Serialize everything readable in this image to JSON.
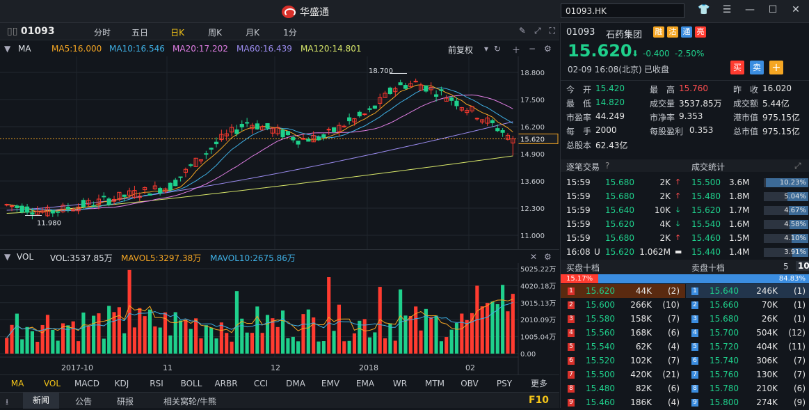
{
  "app": {
    "title": "华盛通",
    "search_value": "01093.HK"
  },
  "toolbar": {
    "code": "01093",
    "periods": [
      "分时",
      "五日",
      "日K",
      "周K",
      "月K",
      "1分"
    ],
    "active": "日K"
  },
  "indicators": {
    "ma": "MA",
    "ma5": "MA5:16.000",
    "ma10": "MA10:16.546",
    "ma20": "MA20:17.202",
    "ma60": "MA60:16.439",
    "ma120": "MA120:14.801",
    "adjust": "前复权"
  },
  "price_axis": [
    "18.800",
    "17.500",
    "16.200",
    "15.620",
    "14.900",
    "13.600",
    "12.300",
    "11.000"
  ],
  "annotations": {
    "high": "18.700",
    "low": "11.980"
  },
  "vol": {
    "label": "VOL",
    "vol": "VOL:3537.85万",
    "mavol5": "MAVOL5:3297.38万",
    "mavol10": "MAVOL10:2675.86万",
    "axis": [
      "5025.22万",
      "4020.18万",
      "3015.13万",
      "2010.09万",
      "1005.04万",
      "0.00"
    ]
  },
  "x_axis": [
    "2017-10",
    "11",
    "12",
    "2018",
    "02"
  ],
  "indicator_tabs": [
    "MA",
    "VOL",
    "MACD",
    "KDJ",
    "RSI",
    "BOLL",
    "ARBR",
    "CCI",
    "DMA",
    "EMV",
    "EMA",
    "WR",
    "MTM",
    "OBV",
    "PSY",
    "更多"
  ],
  "bottom_tabs": {
    "news": "新闻",
    "announce": "公告",
    "research": "研报",
    "related": "相关窝轮/牛熊",
    "f10": "F10"
  },
  "quote": {
    "code": "01093",
    "name": "石药集团",
    "tags": [
      "融",
      "沽",
      "通",
      "亮"
    ],
    "price": "15.620",
    "change": "-0.400",
    "pct": "-2.50%",
    "datetime": "02-09  16:08(北京)",
    "status": "已收盘",
    "buy": "买",
    "sell": "卖",
    "plus": "+"
  },
  "stats": [
    [
      [
        "今　开",
        "15.420",
        "g"
      ],
      [
        "最　高",
        "15.760",
        "r"
      ],
      [
        "昨　收",
        "16.020",
        "w"
      ]
    ],
    [
      [
        "最　低",
        "14.820",
        "g"
      ],
      [
        "成交量",
        "3537.85万",
        "w"
      ],
      [
        "成交额",
        "5.44亿",
        "w"
      ]
    ],
    [
      [
        "市盈率",
        "44.249",
        "w"
      ],
      [
        "市净率",
        "9.353",
        "w"
      ],
      [
        "港市值",
        "975.15亿",
        "w"
      ]
    ],
    [
      [
        "每　手",
        "2000",
        "w"
      ],
      [
        "每股盈利",
        "0.353",
        "w"
      ],
      [
        "总市值",
        "975.15亿",
        "w"
      ]
    ],
    [
      [
        "总股本",
        "62.43亿",
        "w"
      ]
    ]
  ],
  "ticks_header": {
    "left": "逐笔交易",
    "right": "成交统计"
  },
  "ticks": [
    {
      "t": "15:59",
      "p": "15.680",
      "v": "2K",
      "dir": "up",
      "sp": "15.500",
      "sv": "3.6M",
      "pct": "10.23%",
      "pv": 0.95
    },
    {
      "t": "15:59",
      "p": "15.680",
      "v": "2K",
      "dir": "up",
      "sp": "15.480",
      "sv": "1.8M",
      "pct": "5.04%",
      "pv": 0.47
    },
    {
      "t": "15:59",
      "p": "15.640",
      "v": "10K",
      "dir": "down",
      "sp": "15.620",
      "sv": "1.7M",
      "pct": "4.67%",
      "pv": 0.43
    },
    {
      "t": "15:59",
      "p": "15.620",
      "v": "4K",
      "dir": "down",
      "sp": "15.540",
      "sv": "1.6M",
      "pct": "4.58%",
      "pv": 0.42
    },
    {
      "t": "15:59",
      "p": "15.680",
      "v": "2K",
      "dir": "up",
      "sp": "15.460",
      "sv": "1.5M",
      "pct": "4.10%",
      "pv": 0.38
    },
    {
      "t": "16:08",
      "u": "U",
      "p": "15.620",
      "v": "1.062M",
      "dir": "flat",
      "sp": "15.440",
      "sv": "1.4M",
      "pct": "3.91%",
      "pv": 0.36
    }
  ],
  "orderbook": {
    "buy_title": "买盘十档",
    "sell_title": "卖盘十档",
    "opt5": "5",
    "opt10": "10",
    "buy_pct": "15.17%",
    "sell_pct": "84.83%",
    "buy_frac": 0.1517,
    "bids": [
      [
        "1",
        "15.620",
        "44K",
        "(2)"
      ],
      [
        "2",
        "15.600",
        "266K",
        "(10)"
      ],
      [
        "3",
        "15.580",
        "158K",
        "(7)"
      ],
      [
        "4",
        "15.560",
        "168K",
        "(6)"
      ],
      [
        "5",
        "15.540",
        "62K",
        "(4)"
      ],
      [
        "6",
        "15.520",
        "102K",
        "(7)"
      ],
      [
        "7",
        "15.500",
        "420K",
        "(21)"
      ],
      [
        "8",
        "15.480",
        "82K",
        "(6)"
      ],
      [
        "9",
        "15.460",
        "186K",
        "(4)"
      ]
    ],
    "asks": [
      [
        "1",
        "15.640",
        "246K",
        "(1)"
      ],
      [
        "2",
        "15.660",
        "70K",
        "(1)"
      ],
      [
        "3",
        "15.680",
        "26K",
        "(1)"
      ],
      [
        "4",
        "15.700",
        "504K",
        "(12)"
      ],
      [
        "5",
        "15.720",
        "404K",
        "(11)"
      ],
      [
        "6",
        "15.740",
        "306K",
        "(7)"
      ],
      [
        "7",
        "15.760",
        "130K",
        "(7)"
      ],
      [
        "8",
        "15.780",
        "210K",
        "(6)"
      ],
      [
        "9",
        "15.800",
        "274K",
        "(9)"
      ]
    ]
  },
  "colors": {
    "up": "#ff3b30",
    "down": "#1fd08c",
    "ma5": "#f5a623",
    "ma10": "#3fb1e6",
    "ma20": "#e27fe6",
    "ma60": "#9b8cf0",
    "ma120": "#d9e86a"
  }
}
